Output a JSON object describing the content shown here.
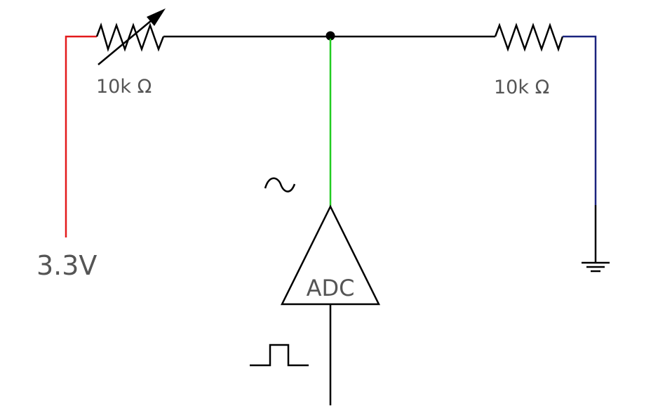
{
  "labels": {
    "variable_resistor_value": "10k Ω",
    "fixed_resistor_value": "10k Ω",
    "supply_voltage": "3.3V",
    "adc_label": "ADC",
    "analog_symbol": "~"
  },
  "colors": {
    "supply_wire": "#e31a1c",
    "analog_wire": "#22cc22",
    "ground_wire": "#1a237e",
    "wire": "#000000",
    "text": "#555555"
  }
}
